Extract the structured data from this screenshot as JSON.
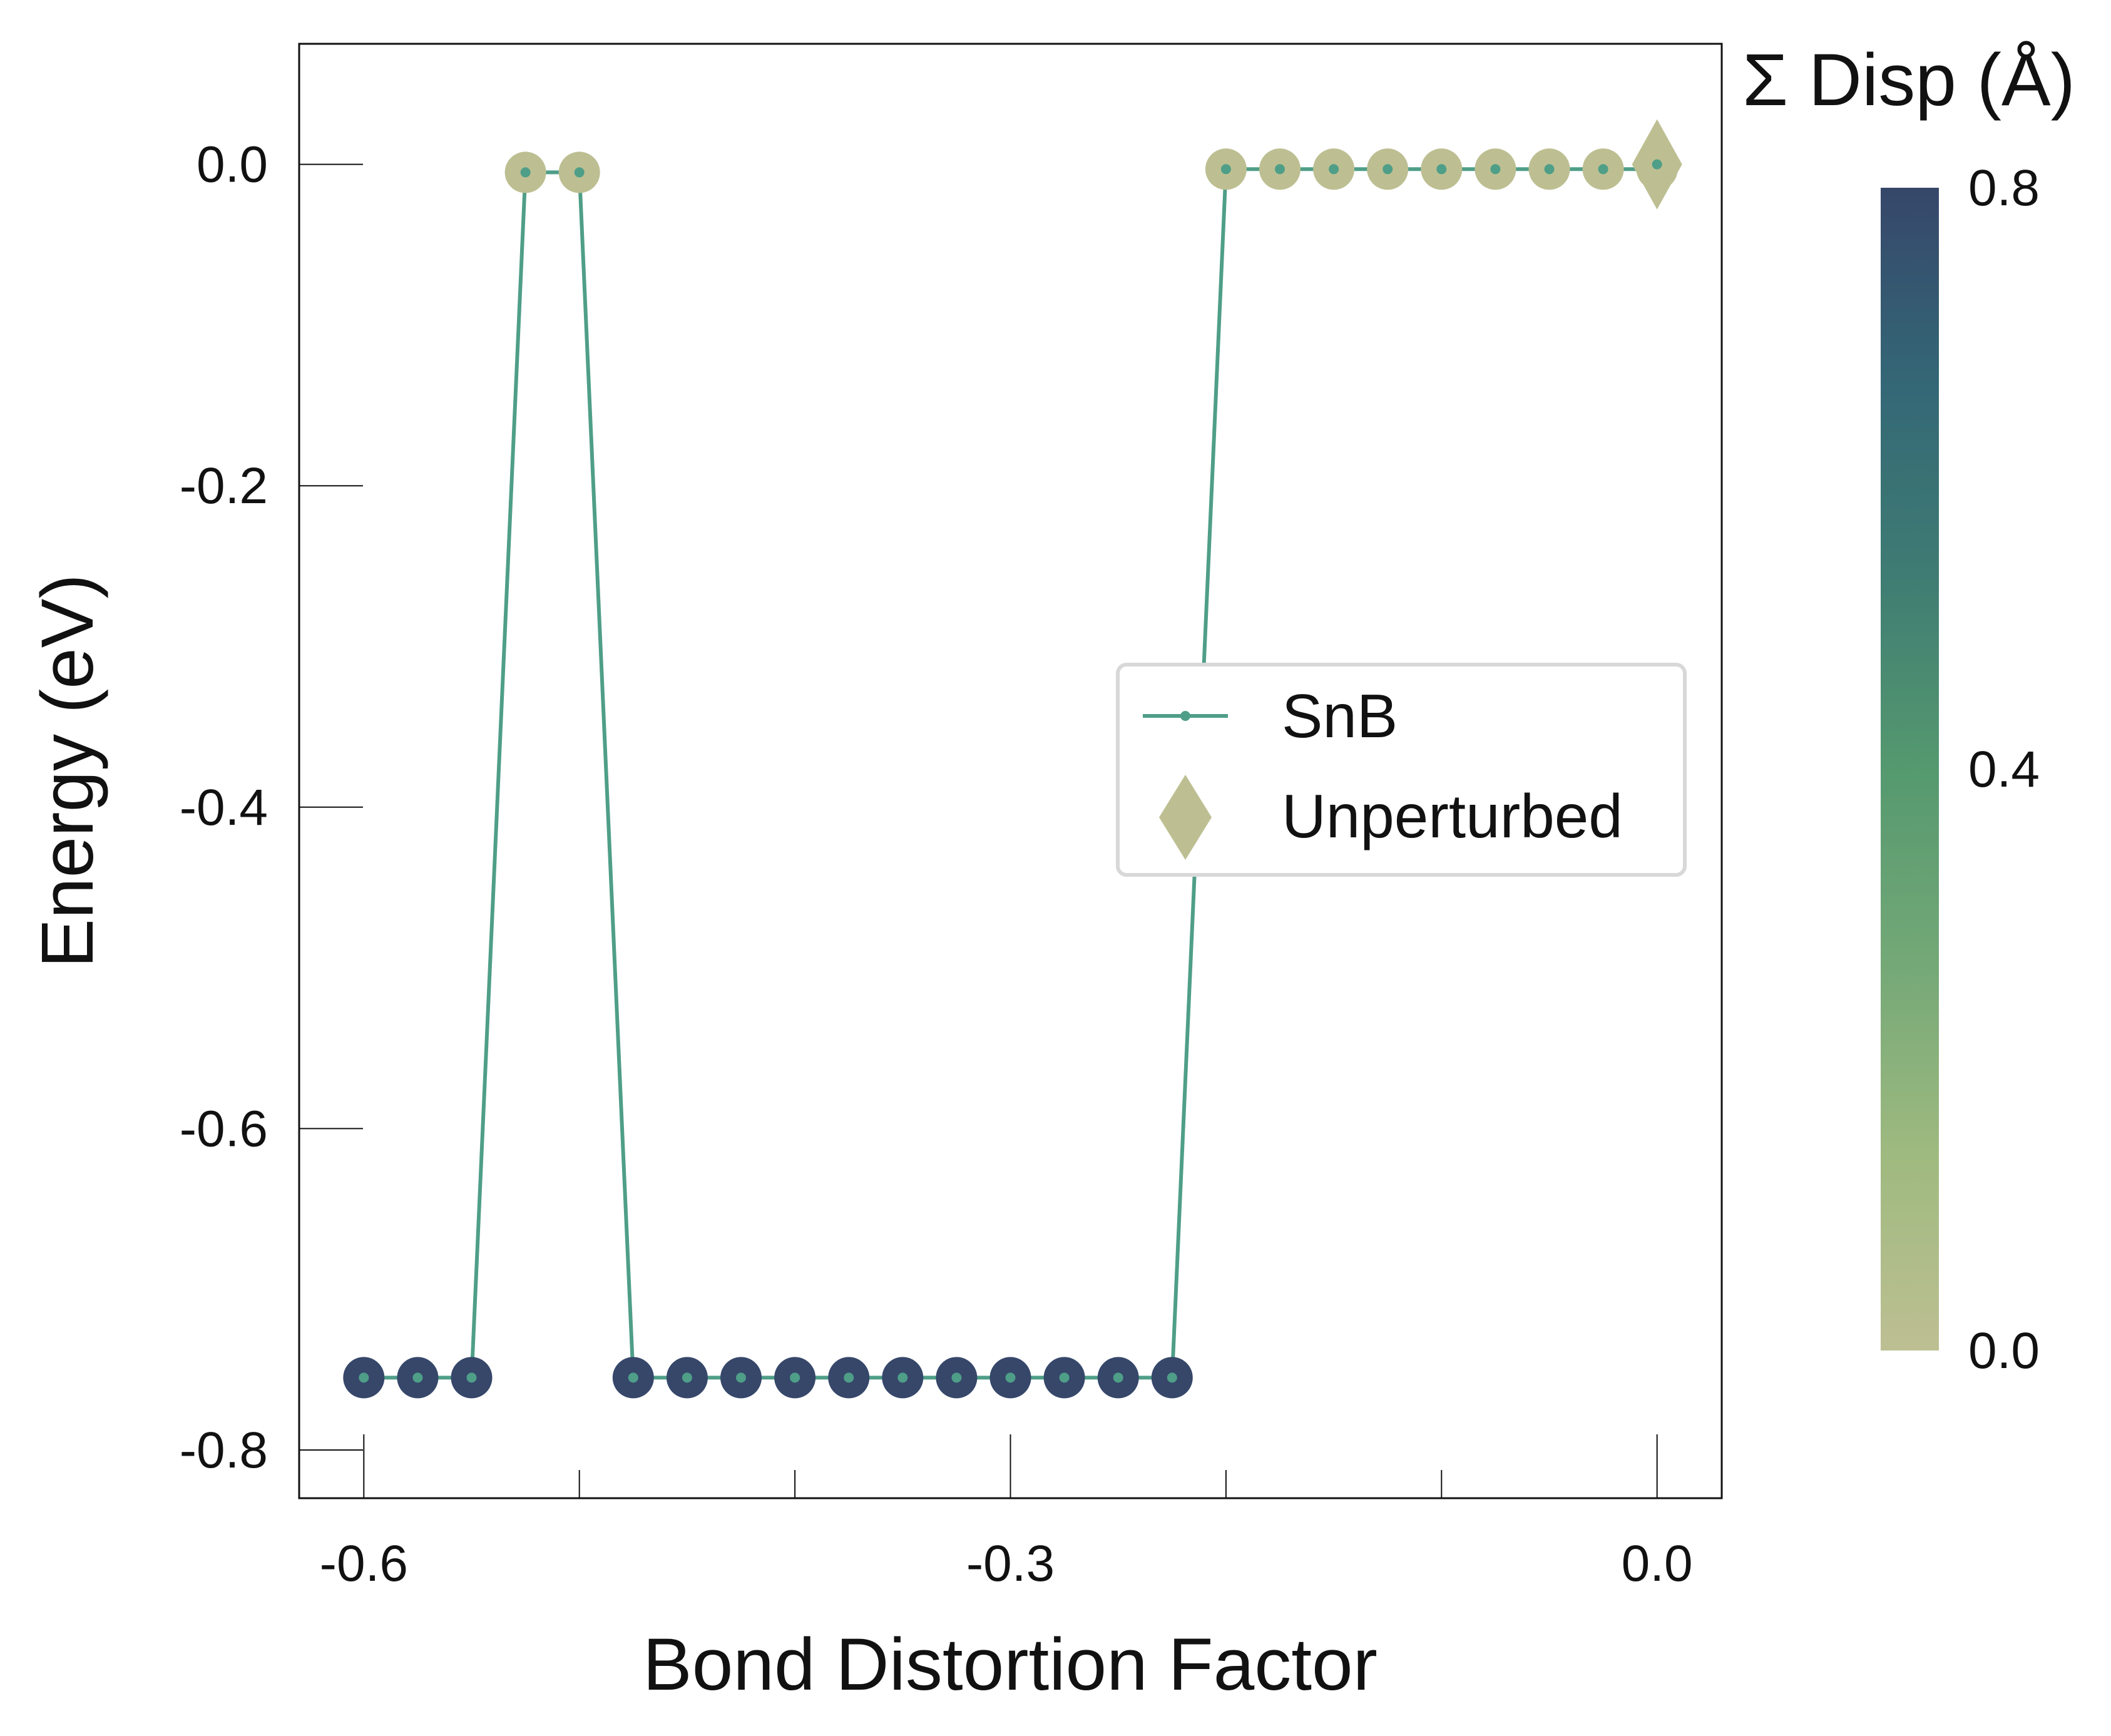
{
  "chart_data": {
    "type": "line",
    "title": "",
    "xlabel": "Bond Distortion Factor",
    "ylabel": "Energy (eV)",
    "xlim": [
      -0.63,
      0.03
    ],
    "ylim": [
      -0.83,
      0.075
    ],
    "xticks": [
      -0.6,
      -0.5,
      -0.4,
      -0.3,
      -0.2,
      -0.1,
      0.0
    ],
    "xtick_labels": [
      "-0.6",
      "",
      "",
      "-0.3",
      "",
      "",
      "0.0"
    ],
    "yticks": [
      0.0,
      -0.2,
      -0.4,
      -0.6,
      -0.8
    ],
    "ytick_labels": [
      "0.0",
      "-0.2",
      "-0.4",
      "-0.6",
      "-0.8"
    ],
    "series": [
      {
        "name": "SnB",
        "line_color": "#4f9e88",
        "x": [
          -0.6,
          -0.575,
          -0.55,
          -0.525,
          -0.5,
          -0.475,
          -0.45,
          -0.425,
          -0.4,
          -0.375,
          -0.35,
          -0.325,
          -0.3,
          -0.275,
          -0.25,
          -0.225,
          -0.2,
          -0.175,
          -0.15,
          -0.125,
          -0.1,
          -0.075,
          -0.05,
          -0.025,
          0.0
        ],
        "y": [
          -0.755,
          -0.755,
          -0.755,
          -0.005,
          -0.005,
          -0.755,
          -0.755,
          -0.755,
          -0.755,
          -0.755,
          -0.755,
          -0.755,
          -0.755,
          -0.755,
          -0.755,
          -0.755,
          -0.003,
          -0.003,
          -0.003,
          -0.003,
          -0.003,
          -0.003,
          -0.003,
          -0.003,
          -0.003
        ],
        "disp": [
          0.8,
          0.8,
          0.8,
          0.0,
          0.0,
          0.8,
          0.8,
          0.8,
          0.8,
          0.8,
          0.8,
          0.8,
          0.8,
          0.8,
          0.8,
          0.8,
          0.0,
          0.0,
          0.0,
          0.0,
          0.0,
          0.0,
          0.0,
          0.0,
          0.0
        ]
      },
      {
        "name": "Unperturbed",
        "marker": "diamond",
        "x": [
          0.0
        ],
        "y": [
          0.0
        ],
        "disp": [
          0.0
        ]
      }
    ],
    "colorbar": {
      "title": "Σ Disp (Å)",
      "min": 0.0,
      "max": 0.8,
      "ticks": [
        0.0,
        0.4,
        0.8
      ],
      "tick_labels": [
        "0.0",
        "0.4",
        "0.8"
      ],
      "colors": [
        "#bdbf92",
        "#9fba80",
        "#74a877",
        "#55996f",
        "#3f7c73",
        "#346776",
        "#36476a"
      ]
    },
    "legend": {
      "placement": "center-right",
      "entries": [
        "SnB",
        "Unperturbed"
      ]
    },
    "grid": false
  }
}
